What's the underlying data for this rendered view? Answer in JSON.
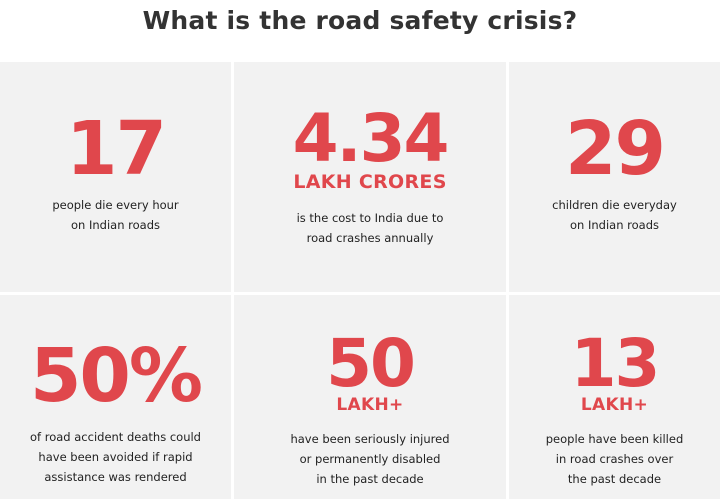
{
  "header": {
    "title": "What is the road safety crisis?"
  },
  "colors": {
    "accent": "#e0474c",
    "tile_background": "#f2f2f2",
    "text": "#222222"
  },
  "stats": [
    {
      "value": "17",
      "unit": "",
      "description": [
        "people die every hour",
        "on Indian roads"
      ]
    },
    {
      "value": "4.34",
      "unit": "LAKH CRORES",
      "description": [
        "is the cost to India due to",
        "road crashes annually"
      ]
    },
    {
      "value": "29",
      "unit": "",
      "description": [
        "children die everyday",
        "on Indian roads"
      ]
    },
    {
      "value": "50%",
      "unit": "",
      "description": [
        "of road accident deaths could",
        "have been avoided if rapid",
        "assistance was rendered"
      ]
    },
    {
      "value": "50",
      "unit": "LAKH+",
      "description": [
        "have been seriously injured",
        "or permanently disabled",
        "in the past decade"
      ]
    },
    {
      "value": "13",
      "unit": "LAKH+",
      "description": [
        "people have been killed",
        "in road crashes over",
        "the past decade"
      ]
    }
  ]
}
